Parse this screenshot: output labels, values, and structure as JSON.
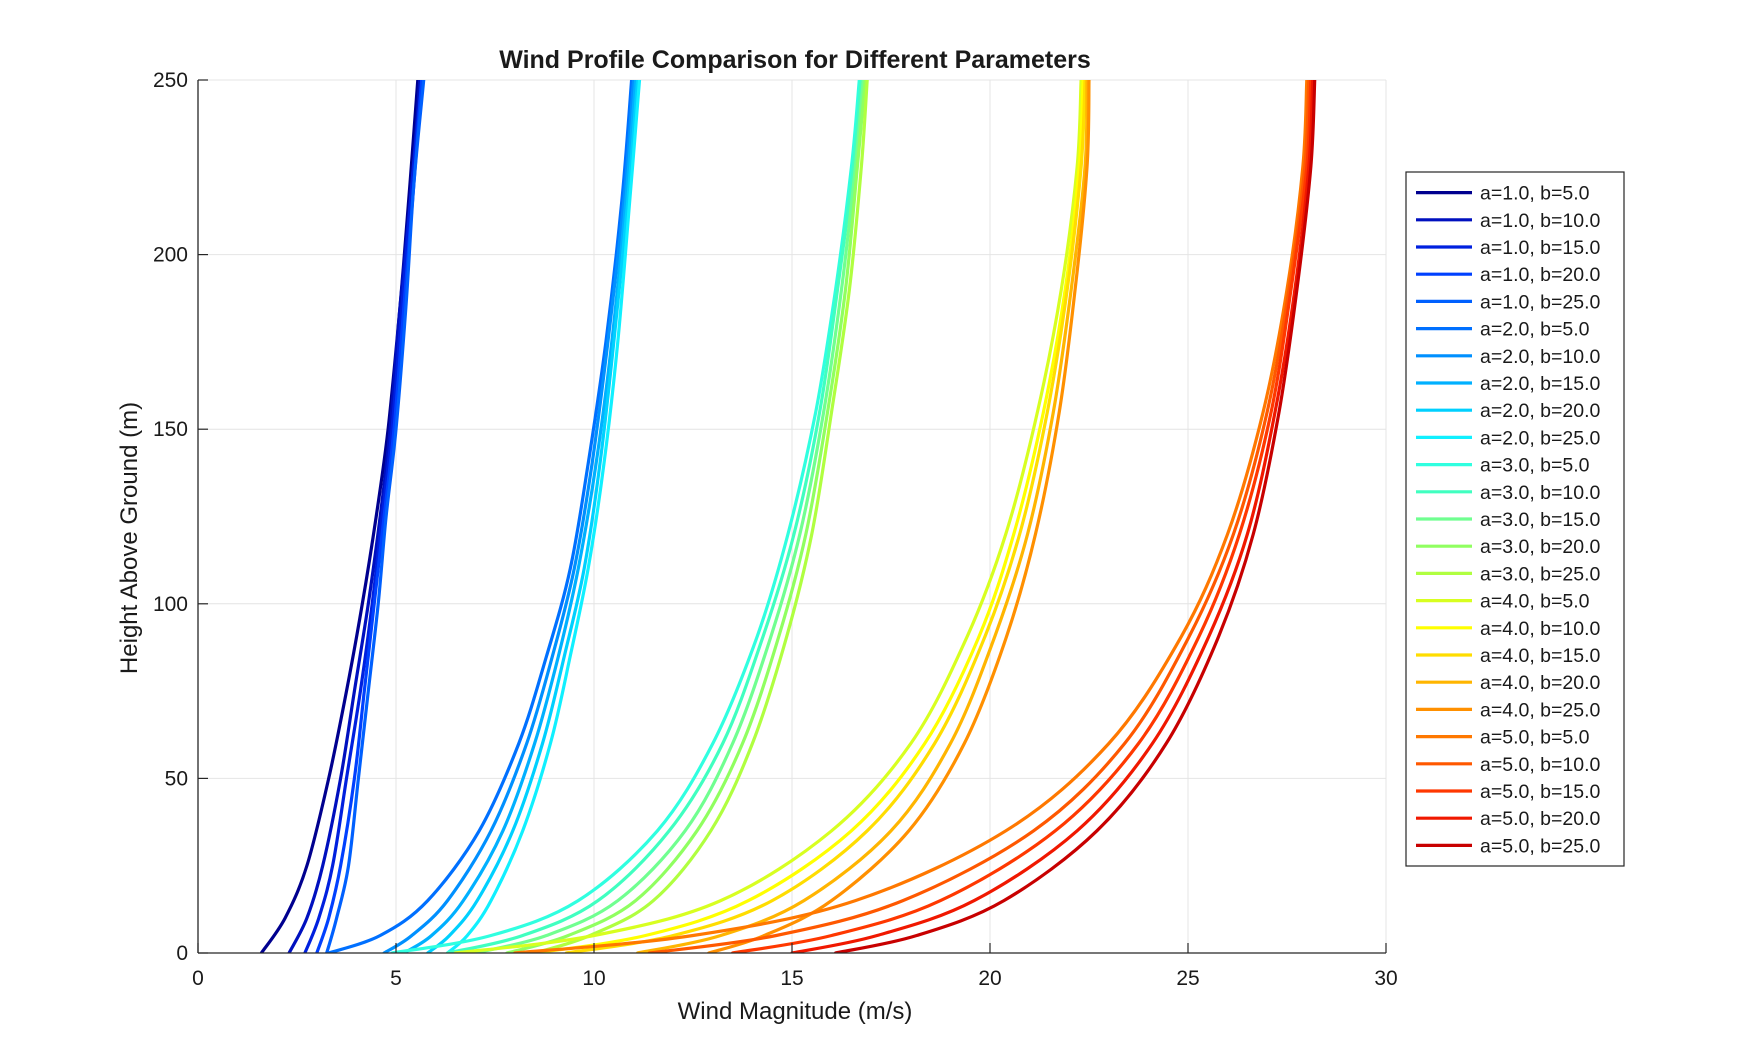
{
  "chart_data": {
    "type": "line",
    "title": "Wind Profile Comparison for Different Parameters",
    "xlabel": "Wind Magnitude (m/s)",
    "ylabel": "Height Above Ground (m)",
    "xlim": [
      0,
      30
    ],
    "ylim": [
      0,
      250
    ],
    "xticks": [
      "0",
      "5",
      "10",
      "15",
      "20",
      "25",
      "30"
    ],
    "yticks": [
      "0",
      "50",
      "100",
      "150",
      "200",
      "250"
    ],
    "grid": true,
    "legend_position": "outside-right",
    "series": [
      {
        "name": "a=1.0, b=5.0",
        "color": "#00008f",
        "x": [
          1.6,
          2.2,
          2.75,
          3.3,
          3.75,
          4.15,
          4.5,
          4.8,
          5.1,
          5.35,
          5.55
        ],
        "y": [
          0,
          10,
          25,
          50,
          75,
          100,
          125,
          150,
          185,
          220,
          250
        ]
      },
      {
        "name": "a=1.0, b=10.0",
        "color": "#0010bf",
        "x": [
          2.3,
          2.75,
          3.15,
          3.6,
          3.95,
          4.3,
          4.6,
          4.85,
          5.1,
          5.4,
          5.6
        ],
        "y": [
          0,
          10,
          25,
          50,
          75,
          100,
          125,
          150,
          185,
          220,
          250
        ]
      },
      {
        "name": "a=1.0, b=15.0",
        "color": "#0020df",
        "x": [
          2.7,
          3.05,
          3.4,
          3.75,
          4.1,
          4.4,
          4.65,
          4.9,
          5.15,
          5.4,
          5.65
        ],
        "y": [
          0,
          10,
          25,
          50,
          75,
          100,
          125,
          150,
          185,
          220,
          250
        ]
      },
      {
        "name": "a=1.0, b=20.0",
        "color": "#0040ff",
        "x": [
          3.0,
          3.3,
          3.6,
          3.95,
          4.2,
          4.45,
          4.7,
          4.95,
          5.2,
          5.45,
          5.65
        ],
        "y": [
          0,
          10,
          25,
          50,
          75,
          100,
          125,
          150,
          185,
          220,
          250
        ]
      },
      {
        "name": "a=1.0, b=25.0",
        "color": "#0060ff",
        "x": [
          3.25,
          3.5,
          3.8,
          4.05,
          4.3,
          4.55,
          4.75,
          5.0,
          5.25,
          5.45,
          5.7
        ],
        "y": [
          0,
          10,
          25,
          50,
          75,
          100,
          125,
          150,
          185,
          220,
          250
        ]
      },
      {
        "name": "a=2.0, b=5.0",
        "color": "#0070ff",
        "x": [
          3.3,
          4.6,
          5.8,
          7.1,
          8.1,
          8.8,
          9.4,
          9.85,
          10.3,
          10.7,
          10.95
        ],
        "y": [
          0,
          5,
          15,
          35,
          60,
          85,
          110,
          140,
          175,
          215,
          250
        ]
      },
      {
        "name": "a=2.0, b=10.0",
        "color": "#0090ff",
        "x": [
          4.7,
          5.4,
          6.3,
          7.4,
          8.3,
          8.95,
          9.5,
          9.95,
          10.35,
          10.75,
          11.0
        ],
        "y": [
          0,
          5,
          15,
          35,
          60,
          85,
          110,
          140,
          175,
          215,
          250
        ]
      },
      {
        "name": "a=2.0, b=15.0",
        "color": "#00b0ff",
        "x": [
          5.2,
          5.9,
          6.7,
          7.7,
          8.5,
          9.1,
          9.6,
          10.05,
          10.45,
          10.8,
          11.05
        ],
        "y": [
          0,
          5,
          15,
          35,
          60,
          85,
          110,
          140,
          175,
          215,
          250
        ]
      },
      {
        "name": "a=2.0, b=20.0",
        "color": "#00d0ff",
        "x": [
          5.8,
          6.35,
          7.05,
          7.95,
          8.7,
          9.25,
          9.75,
          10.15,
          10.5,
          10.85,
          11.1
        ],
        "y": [
          0,
          5,
          15,
          35,
          60,
          85,
          110,
          140,
          175,
          215,
          250
        ]
      },
      {
        "name": "a=2.0, b=25.0",
        "color": "#10f0ff",
        "x": [
          6.3,
          6.8,
          7.4,
          8.2,
          8.9,
          9.4,
          9.85,
          10.25,
          10.6,
          10.9,
          11.15
        ],
        "y": [
          0,
          5,
          15,
          35,
          60,
          85,
          110,
          140,
          175,
          215,
          250
        ]
      },
      {
        "name": "a=3.0, b=5.0",
        "color": "#30ffe0",
        "x": [
          4.9,
          7.4,
          9.6,
          11.6,
          13.0,
          14.1,
          14.9,
          15.6,
          16.1,
          16.5,
          16.7
        ],
        "y": [
          0,
          5,
          15,
          35,
          60,
          90,
          120,
          155,
          190,
          225,
          250
        ]
      },
      {
        "name": "a=3.0, b=10.0",
        "color": "#40ffc0",
        "x": [
          6.3,
          8.2,
          10.1,
          11.9,
          13.25,
          14.25,
          15.05,
          15.7,
          16.15,
          16.55,
          16.75
        ],
        "y": [
          0,
          5,
          15,
          35,
          60,
          90,
          120,
          155,
          190,
          225,
          250
        ]
      },
      {
        "name": "a=3.0, b=15.0",
        "color": "#70ff90",
        "x": [
          7.0,
          8.8,
          10.6,
          12.3,
          13.5,
          14.45,
          15.2,
          15.8,
          16.25,
          16.6,
          16.8
        ],
        "y": [
          0,
          5,
          15,
          35,
          60,
          90,
          120,
          155,
          190,
          225,
          250
        ]
      },
      {
        "name": "a=3.0, b=20.0",
        "color": "#90ff60",
        "x": [
          7.8,
          9.35,
          11.05,
          12.6,
          13.75,
          14.65,
          15.35,
          15.9,
          16.35,
          16.65,
          16.85
        ],
        "y": [
          0,
          5,
          15,
          35,
          60,
          90,
          120,
          155,
          190,
          225,
          250
        ]
      },
      {
        "name": "a=3.0, b=25.0",
        "color": "#b0ff40",
        "x": [
          8.5,
          9.9,
          11.5,
          12.95,
          14.0,
          14.85,
          15.5,
          16.0,
          16.45,
          16.75,
          16.9
        ],
        "y": [
          0,
          5,
          15,
          35,
          60,
          90,
          120,
          155,
          190,
          225,
          250
        ]
      },
      {
        "name": "a=4.0, b=5.0",
        "color": "#d8ff20",
        "x": [
          6.5,
          10.0,
          13.2,
          16.0,
          18.0,
          19.4,
          20.4,
          21.2,
          21.8,
          22.2,
          22.3
        ],
        "y": [
          0,
          5,
          15,
          35,
          60,
          90,
          120,
          155,
          190,
          225,
          250
        ]
      },
      {
        "name": "a=4.0, b=10.0",
        "color": "#ffff00",
        "x": [
          8.5,
          11.3,
          13.9,
          16.5,
          18.35,
          19.7,
          20.6,
          21.35,
          21.9,
          22.25,
          22.35
        ],
        "y": [
          0,
          5,
          15,
          35,
          60,
          90,
          120,
          155,
          190,
          225,
          250
        ]
      },
      {
        "name": "a=4.0, b=15.0",
        "color": "#ffdd00",
        "x": [
          9.3,
          12.0,
          14.5,
          16.9,
          18.6,
          19.85,
          20.75,
          21.45,
          21.95,
          22.3,
          22.4
        ],
        "y": [
          0,
          5,
          15,
          35,
          60,
          90,
          120,
          155,
          190,
          225,
          250
        ]
      },
      {
        "name": "a=4.0, b=20.0",
        "color": "#ffb500",
        "x": [
          11.1,
          13.2,
          15.3,
          17.5,
          19.0,
          20.1,
          20.95,
          21.6,
          22.05,
          22.4,
          22.45
        ],
        "y": [
          0,
          5,
          15,
          35,
          60,
          90,
          120,
          155,
          190,
          225,
          250
        ]
      },
      {
        "name": "a=4.0, b=25.0",
        "color": "#ff9000",
        "x": [
          12.9,
          14.3,
          16.0,
          17.95,
          19.35,
          20.4,
          21.15,
          21.75,
          22.15,
          22.45,
          22.5
        ],
        "y": [
          0,
          5,
          15,
          35,
          60,
          90,
          120,
          155,
          190,
          225,
          250
        ]
      },
      {
        "name": "a=5.0, b=5.0",
        "color": "#ff7800",
        "x": [
          8.0,
          12.5,
          16.6,
          20.4,
          23.0,
          24.8,
          26.0,
          26.9,
          27.5,
          27.9,
          28.0
        ],
        "y": [
          0,
          5,
          15,
          35,
          60,
          90,
          120,
          155,
          190,
          225,
          250
        ]
      },
      {
        "name": "a=5.0, b=10.0",
        "color": "#ff5800",
        "x": [
          11.4,
          14.6,
          17.8,
          21.1,
          23.4,
          25.0,
          26.15,
          27.0,
          27.55,
          27.95,
          28.05
        ],
        "y": [
          0,
          5,
          15,
          35,
          60,
          90,
          120,
          155,
          190,
          225,
          250
        ]
      },
      {
        "name": "a=5.0, b=15.0",
        "color": "#ff3800",
        "x": [
          13.5,
          16.0,
          18.75,
          21.65,
          23.75,
          25.25,
          26.3,
          27.1,
          27.6,
          28.0,
          28.1
        ],
        "y": [
          0,
          5,
          15,
          35,
          60,
          90,
          120,
          155,
          190,
          225,
          250
        ]
      },
      {
        "name": "a=5.0, b=20.0",
        "color": "#f01800",
        "x": [
          15.0,
          17.15,
          19.6,
          22.2,
          24.1,
          25.5,
          26.5,
          27.2,
          27.7,
          28.05,
          28.15
        ],
        "y": [
          0,
          5,
          15,
          35,
          60,
          90,
          120,
          155,
          190,
          225,
          250
        ]
      },
      {
        "name": "a=5.0, b=25.0",
        "color": "#c80000",
        "x": [
          16.1,
          18.15,
          20.35,
          22.7,
          24.45,
          25.75,
          26.65,
          27.3,
          27.75,
          28.1,
          28.2
        ],
        "y": [
          0,
          5,
          15,
          35,
          60,
          90,
          120,
          155,
          190,
          225,
          250
        ]
      }
    ]
  }
}
